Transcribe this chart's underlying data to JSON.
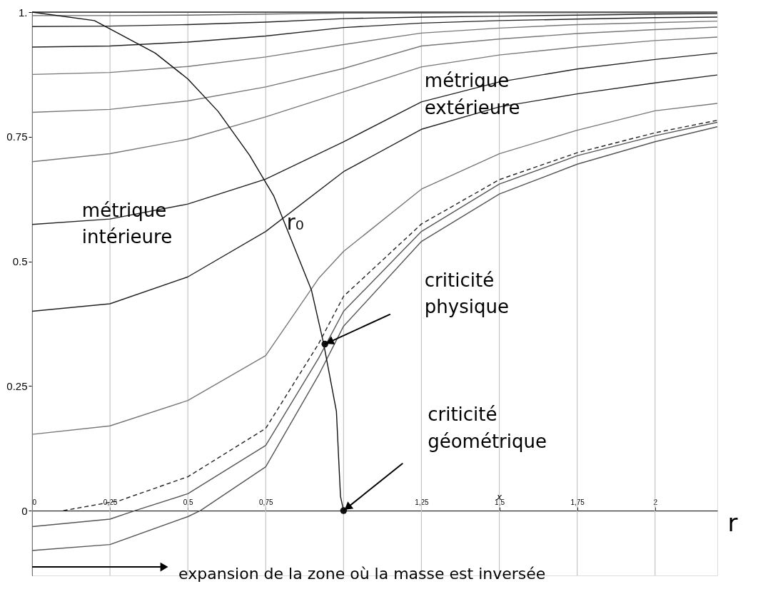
{
  "chart_data": {
    "type": "line",
    "xlabel": "r",
    "xlim": [
      0,
      2.2
    ],
    "ylim": [
      -0.13,
      1.0
    ],
    "xticks": [
      0,
      {
        "value": 0.25,
        "label": "0,25"
      },
      {
        "value": 0.5,
        "label": "0,5"
      },
      {
        "value": 0.75,
        "label": "0,75"
      },
      {
        "value": 1,
        "label": null
      },
      {
        "value": 1.25,
        "label": "1,25"
      },
      {
        "value": 1.5,
        "label": "1,5"
      },
      {
        "value": 1.75,
        "label": "1,75"
      },
      2
    ],
    "yticks": [
      0,
      0.25,
      0.5,
      0.75,
      {
        "value": 1,
        "label": "1."
      }
    ],
    "grid": "x",
    "x": [
      0,
      0.25,
      0.5,
      0.75,
      1.0,
      1.25,
      1.5,
      1.75,
      2.0,
      2.2
    ],
    "series": [
      {
        "color": "#222222",
        "values": [
          1.0,
          1.0,
          1.0,
          1.0,
          1.0,
          1.0,
          1.0,
          1.0,
          1.0,
          1.0
        ]
      },
      {
        "color": "#666666",
        "values": [
          0.993,
          0.993,
          0.994,
          0.996,
          0.998,
          0.998,
          0.999,
          0.999,
          0.999,
          0.999
        ]
      },
      {
        "color": "#222222",
        "values": [
          0.971,
          0.972,
          0.975,
          0.98,
          0.987,
          0.99,
          0.992,
          0.994,
          0.996,
          0.997
        ]
      },
      {
        "color": "#222222",
        "values": [
          0.93,
          0.932,
          0.94,
          0.952,
          0.969,
          0.978,
          0.983,
          0.986,
          0.989,
          0.99
        ]
      },
      {
        "color": "#777777",
        "values": [
          0.875,
          0.879,
          0.891,
          0.91,
          0.935,
          0.958,
          0.968,
          0.975,
          0.979,
          0.982
        ]
      },
      {
        "color": "#777777",
        "values": [
          0.799,
          0.805,
          0.822,
          0.85,
          0.887,
          0.932,
          0.946,
          0.957,
          0.965,
          0.97
        ]
      },
      {
        "color": "#777777",
        "values": [
          0.7,
          0.716,
          0.745,
          0.79,
          0.84,
          0.89,
          0.914,
          0.93,
          0.943,
          0.95
        ]
      },
      {
        "color": "#222222",
        "values": [
          0.574,
          0.585,
          0.615,
          0.665,
          0.74,
          0.82,
          0.86,
          0.886,
          0.905,
          0.918
        ]
      },
      {
        "color": "#222222",
        "values": [
          0.4,
          0.415,
          0.469,
          0.56,
          0.68,
          0.765,
          0.81,
          0.836,
          0.858,
          0.874
        ]
      },
      {
        "color": "#777777",
        "x": [
          0,
          0.25,
          0.5,
          0.75,
          0.92,
          1.0,
          1.25,
          1.5,
          1.75,
          2.0,
          2.2
        ],
        "values": [
          0.153,
          0.17,
          0.221,
          0.311,
          0.466,
          0.52,
          0.645,
          0.716,
          0.763,
          0.802,
          0.817
        ]
      },
      {
        "color": "#222222",
        "line_style": "dashed",
        "x": [
          0.1,
          0.28,
          0.5,
          0.75,
          0.92,
          1.0,
          1.25,
          1.5,
          1.75,
          2.0,
          2.2
        ],
        "values": [
          0.0,
          0.02,
          0.068,
          0.165,
          0.335,
          0.43,
          0.575,
          0.664,
          0.718,
          0.758,
          0.783
        ]
      },
      {
        "color": "#555555",
        "x": [
          0,
          0.25,
          0.33,
          0.5,
          0.75,
          0.92,
          1.0,
          1.25,
          1.5,
          1.75,
          2.0,
          2.2
        ],
        "values": [
          -0.032,
          -0.017,
          0.0,
          0.034,
          0.131,
          0.306,
          0.4,
          0.56,
          0.655,
          0.712,
          0.752,
          0.779
        ]
      },
      {
        "color": "#555555",
        "x": [
          0,
          0.25,
          0.5,
          0.54,
          0.75,
          0.92,
          1.0,
          1.25,
          1.5,
          1.75,
          2.0,
          2.2
        ],
        "values": [
          -0.08,
          -0.068,
          -0.012,
          0.0,
          0.088,
          0.272,
          0.37,
          0.54,
          0.635,
          0.695,
          0.74,
          0.77
        ]
      },
      {
        "name": "r₀",
        "color": "#111111",
        "x": [
          0,
          0.2,
          0.395,
          0.5,
          0.597,
          0.698,
          0.776,
          0.897,
          0.936,
          0.977,
          0.99,
          1.0
        ],
        "values": [
          1.0,
          0.983,
          0.918,
          0.866,
          0.801,
          0.713,
          0.631,
          0.442,
          0.335,
          0.199,
          0.029,
          0.0
        ]
      },
      {
        "type": "scatter",
        "marker": "circle",
        "color": "#111111",
        "x": [
          0.94,
          1.0
        ],
        "values": [
          0.334,
          0.0
        ]
      }
    ],
    "annotations": [
      "métrique intérieure",
      "métrique extérieure",
      "criticité physique",
      "criticité géométrique",
      "x",
      "expansion de la zone où la masse est inversée"
    ]
  }
}
